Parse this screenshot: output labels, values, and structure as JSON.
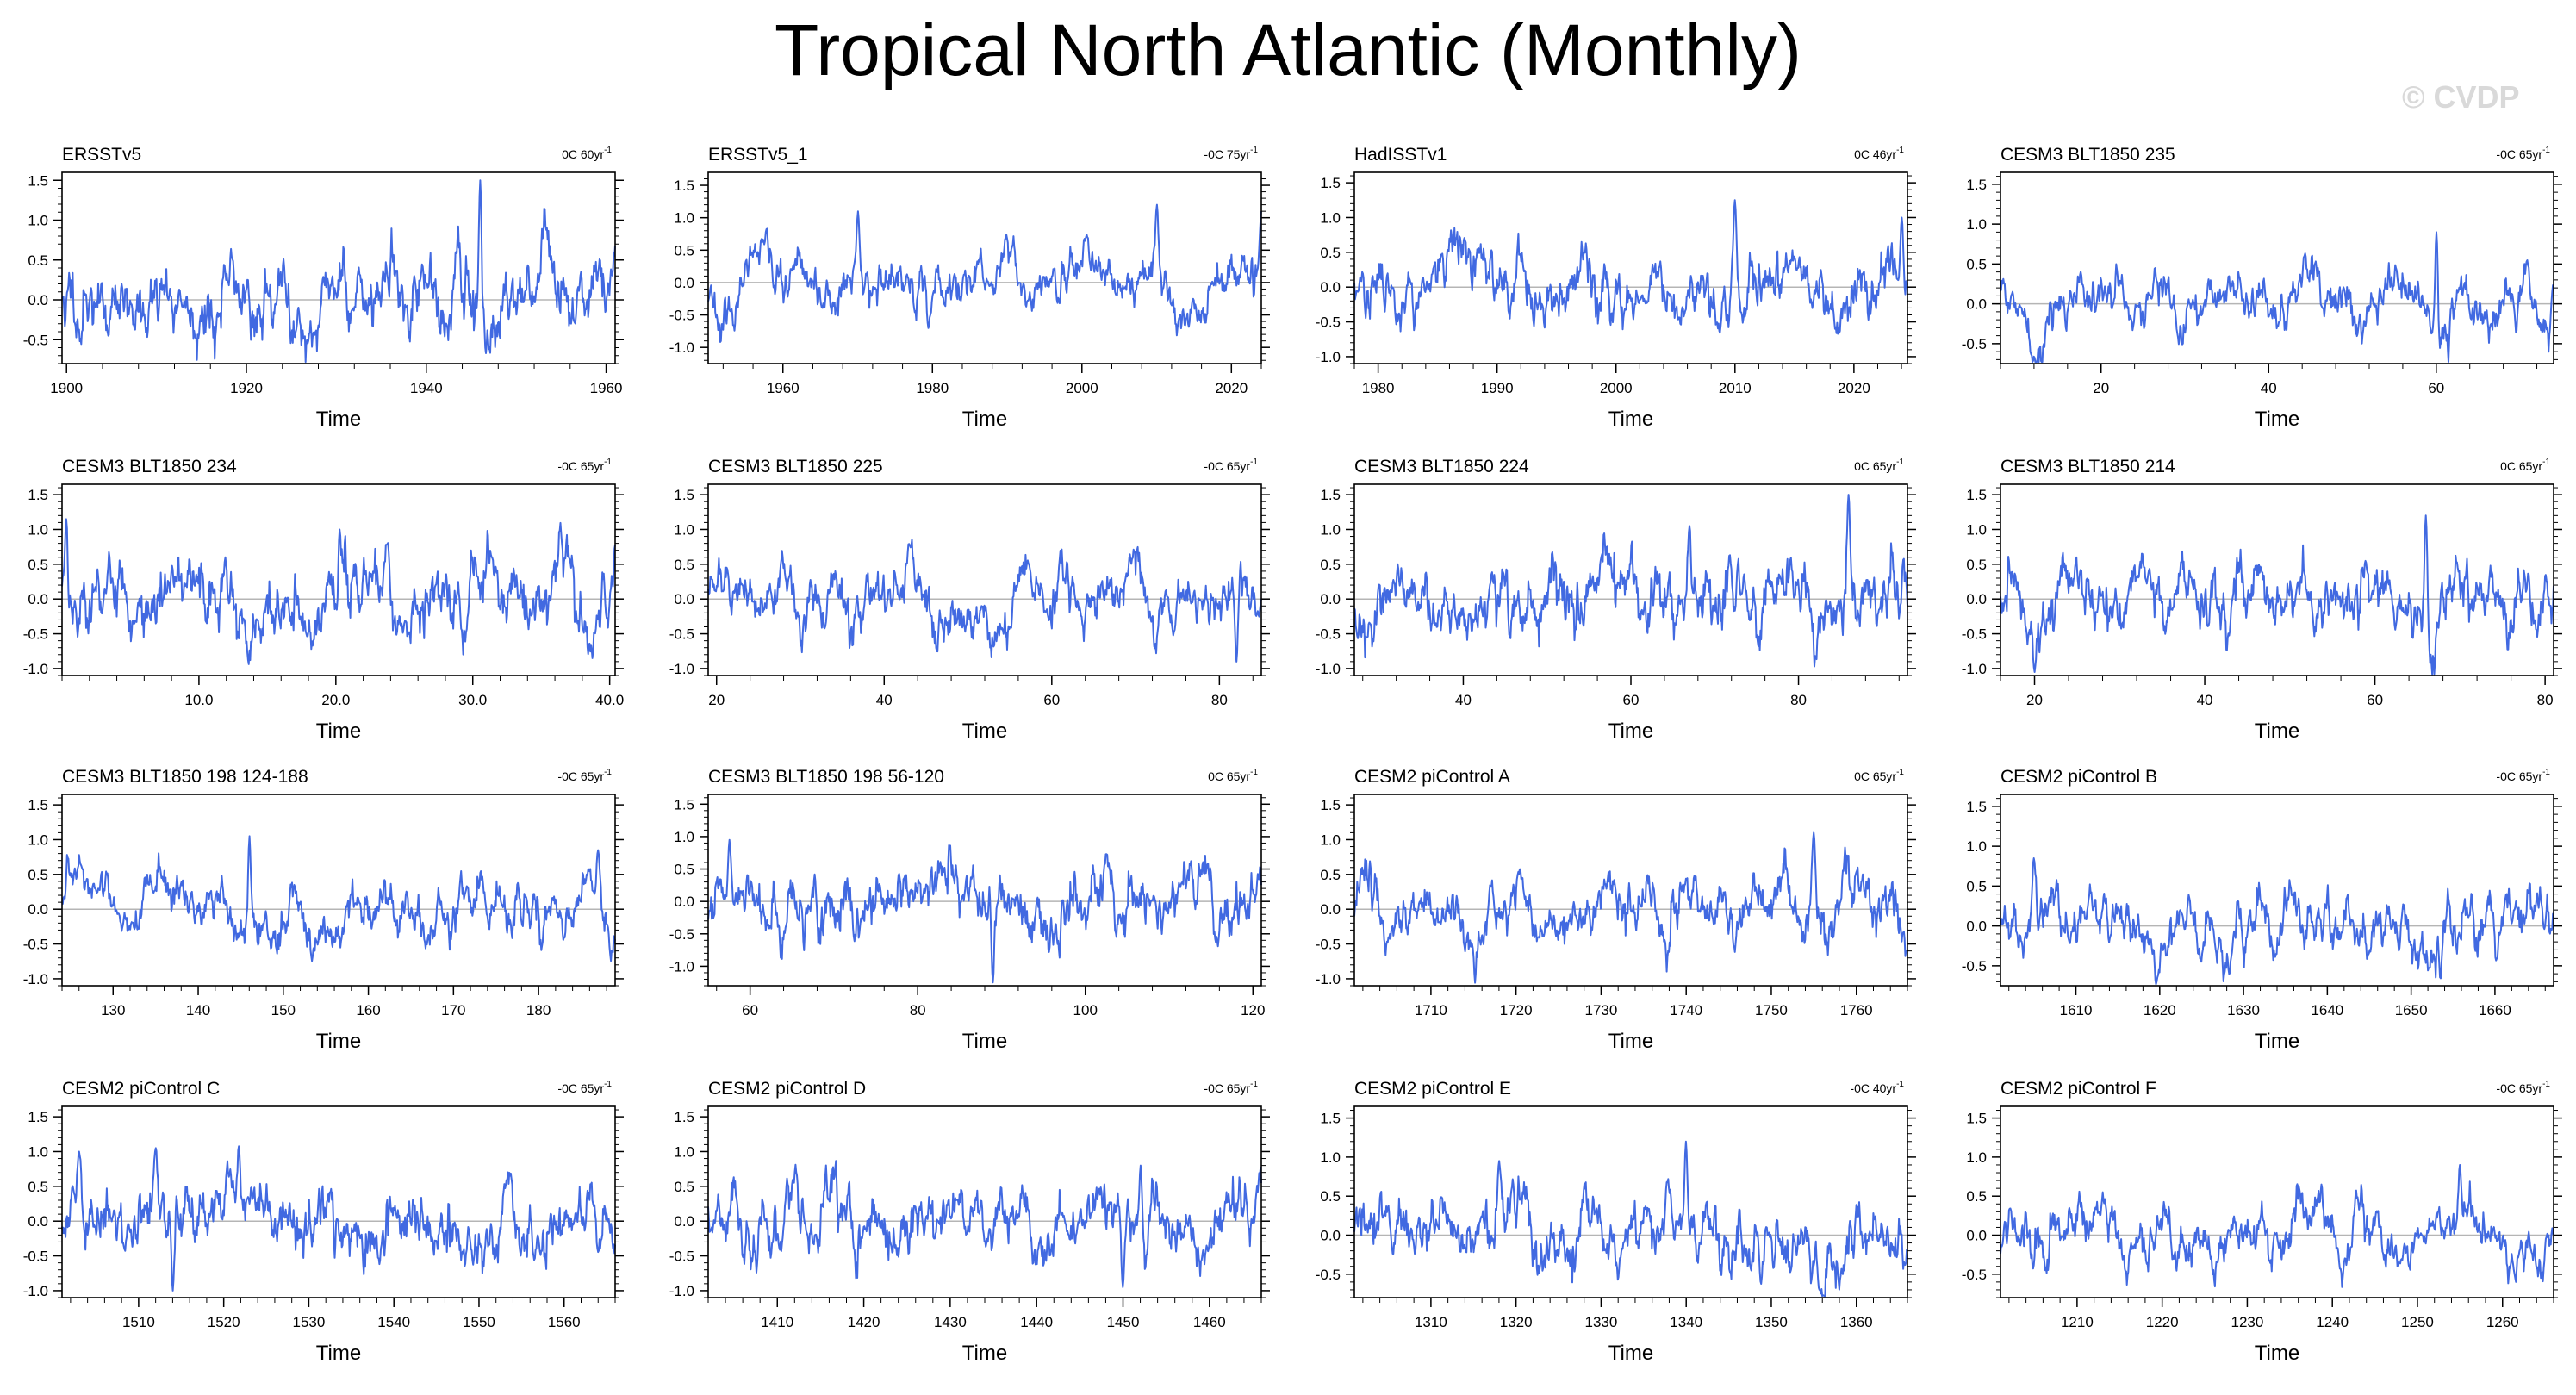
{
  "title": "Tropical North Atlantic (Monthly)",
  "watermark": "© CVDP",
  "colors": {
    "line": "#4169E1",
    "zero_line": "#b5b5b5",
    "axis": "#000000"
  },
  "chart_data": [
    {
      "type": "line",
      "title": "ERSSTv5",
      "trend": "0C 60yr",
      "trend_exp": "-1",
      "xlabel": "Time",
      "xlim": [
        1899.5,
        1961.0
      ],
      "xticks": [
        1900,
        1920,
        1940,
        1960
      ],
      "xtick_labels": [
        "1900",
        "1920",
        "1940",
        "1960"
      ],
      "ylim": [
        -0.8,
        1.6
      ],
      "yticks": [
        -0.5,
        0.0,
        0.5,
        1.0,
        1.5
      ],
      "ytick_labels": [
        "-0.5",
        "0.0",
        "0.5",
        "1.0",
        "1.5"
      ],
      "seed": 11,
      "mean": 0.0,
      "sd": 0.3,
      "highlights": [
        [
          1946,
          1.5
        ]
      ]
    },
    {
      "type": "line",
      "title": "ERSSTv5_1",
      "trend": "-0C 75yr",
      "trend_exp": "-1",
      "xlabel": "Time",
      "xlim": [
        1950,
        2024
      ],
      "xticks": [
        1960,
        1980,
        2000,
        2020
      ],
      "xtick_labels": [
        "1960",
        "1980",
        "2000",
        "2020"
      ],
      "ylim": [
        -1.25,
        1.7
      ],
      "yticks": [
        -1.0,
        -0.5,
        0.0,
        0.5,
        1.0,
        1.5
      ],
      "ytick_labels": [
        "-1.0",
        "-0.5",
        "0.0",
        "0.5",
        "1.0",
        "1.5"
      ],
      "seed": 23,
      "mean": 0.0,
      "sd": 0.3,
      "highlights": [
        [
          1970,
          1.1
        ],
        [
          2010,
          1.2
        ],
        [
          2024,
          1.1
        ]
      ]
    },
    {
      "type": "line",
      "title": "HadISSTv1",
      "trend": "0C 46yr",
      "trend_exp": "-1",
      "xlabel": "Time",
      "xlim": [
        1978.0,
        2024.5
      ],
      "xticks": [
        1980,
        1990,
        2000,
        2010,
        2020
      ],
      "xtick_labels": [
        "1980",
        "1990",
        "2000",
        "2010",
        "2020"
      ],
      "ylim": [
        -1.1,
        1.65
      ],
      "yticks": [
        -1.0,
        -0.5,
        0.0,
        0.5,
        1.0,
        1.5
      ],
      "ytick_labels": [
        "-1.0",
        "-0.5",
        "0.0",
        "0.5",
        "1.0",
        "1.5"
      ],
      "seed": 37,
      "mean": 0.0,
      "sd": 0.3,
      "highlights": [
        [
          2010,
          1.25
        ],
        [
          2024,
          1.0
        ]
      ]
    },
    {
      "type": "line",
      "title": "CESM3 BLT1850 235",
      "trend": "-0C 65yr",
      "trend_exp": "-1",
      "xlabel": "Time",
      "xlim": [
        8,
        74
      ],
      "xticks": [
        20,
        40,
        60
      ],
      "xtick_labels": [
        "20",
        "40",
        "60"
      ],
      "ylim": [
        -0.75,
        1.65
      ],
      "yticks": [
        -0.5,
        0.0,
        0.5,
        1.0,
        1.5
      ],
      "ytick_labels": [
        "-0.5",
        "0.0",
        "0.5",
        "1.0",
        "1.5"
      ],
      "seed": 41,
      "mean": 0.0,
      "sd": 0.25,
      "highlights": [
        [
          60,
          0.9
        ]
      ]
    },
    {
      "type": "line",
      "title": "CESM3 BLT1850 234",
      "trend": "-0C 65yr",
      "trend_exp": "-1",
      "xlabel": "Time",
      "xlim": [
        0.0,
        40.4
      ],
      "xticks": [
        10,
        20,
        30,
        40
      ],
      "xtick_labels": [
        "10.0",
        "20.0",
        "30.0",
        "40.0"
      ],
      "ylim": [
        -1.1,
        1.65
      ],
      "yticks": [
        -1.0,
        -0.5,
        0.0,
        0.5,
        1.0,
        1.5
      ],
      "ytick_labels": [
        "-1.0",
        "-0.5",
        "0.0",
        "0.5",
        "1.0",
        "1.5"
      ],
      "seed": 53,
      "mean": 0.0,
      "sd": 0.35,
      "highlights": [
        [
          0.3,
          1.15
        ],
        [
          20.3,
          1.0
        ]
      ]
    },
    {
      "type": "line",
      "title": "CESM3 BLT1850 225",
      "trend": "-0C 65yr",
      "trend_exp": "-1",
      "xlabel": "Time",
      "xlim": [
        19,
        85
      ],
      "xticks": [
        20,
        40,
        60,
        80
      ],
      "xtick_labels": [
        "20",
        "40",
        "60",
        "80"
      ],
      "ylim": [
        -1.1,
        1.65
      ],
      "yticks": [
        -1.0,
        -0.5,
        0.0,
        0.5,
        1.0,
        1.5
      ],
      "ytick_labels": [
        "-1.0",
        "-0.5",
        "0.0",
        "0.5",
        "1.0",
        "1.5"
      ],
      "seed": 61,
      "mean": 0.0,
      "sd": 0.3,
      "highlights": [
        [
          82,
          -0.9
        ]
      ]
    },
    {
      "type": "line",
      "title": "CESM3 BLT1850 224",
      "trend": "0C 65yr",
      "trend_exp": "-1",
      "xlabel": "Time",
      "xlim": [
        27,
        93
      ],
      "xticks": [
        40,
        60,
        80
      ],
      "xtick_labels": [
        "40",
        "60",
        "80"
      ],
      "ylim": [
        -1.1,
        1.65
      ],
      "yticks": [
        -1.0,
        -0.5,
        0.0,
        0.5,
        1.0,
        1.5
      ],
      "ytick_labels": [
        "-1.0",
        "-0.5",
        "0.0",
        "0.5",
        "1.0",
        "1.5"
      ],
      "seed": 71,
      "mean": 0.0,
      "sd": 0.3,
      "highlights": [
        [
          67,
          1.05
        ],
        [
          86,
          1.5
        ]
      ]
    },
    {
      "type": "line",
      "title": "CESM3 BLT1850 214",
      "trend": "0C 65yr",
      "trend_exp": "-1",
      "xlabel": "Time",
      "xlim": [
        16,
        81
      ],
      "xticks": [
        20,
        40,
        60,
        80
      ],
      "xtick_labels": [
        "20",
        "40",
        "60",
        "80"
      ],
      "ylim": [
        -1.1,
        1.65
      ],
      "yticks": [
        -1.0,
        -0.5,
        0.0,
        0.5,
        1.0,
        1.5
      ],
      "ytick_labels": [
        "-1.0",
        "-0.5",
        "0.0",
        "0.5",
        "1.0",
        "1.5"
      ],
      "seed": 83,
      "mean": 0.0,
      "sd": 0.3,
      "highlights": [
        [
          20,
          -1.05
        ],
        [
          66,
          1.2
        ]
      ]
    },
    {
      "type": "line",
      "title": "CESM3 BLT1850 198 124-188",
      "trend": "-0C 65yr",
      "trend_exp": "-1",
      "xlabel": "Time",
      "xlim": [
        124,
        189
      ],
      "xticks": [
        130,
        140,
        150,
        160,
        170,
        180
      ],
      "xtick_labels": [
        "130",
        "140",
        "150",
        "160",
        "170",
        "180"
      ],
      "ylim": [
        -1.1,
        1.65
      ],
      "yticks": [
        -1.0,
        -0.5,
        0.0,
        0.5,
        1.0,
        1.5
      ],
      "ytick_labels": [
        "-1.0",
        "-0.5",
        "0.0",
        "0.5",
        "1.0",
        "1.5"
      ],
      "seed": 97,
      "mean": 0.0,
      "sd": 0.3,
      "highlights": [
        [
          146,
          1.05
        ],
        [
          187,
          0.85
        ]
      ]
    },
    {
      "type": "line",
      "title": "CESM3 BLT1850 198 56-120",
      "trend": "0C 65yr",
      "trend_exp": "-1",
      "xlabel": "Time",
      "xlim": [
        55,
        121
      ],
      "xticks": [
        60,
        80,
        100,
        120
      ],
      "xtick_labels": [
        "60",
        "80",
        "100",
        "120"
      ],
      "ylim": [
        -1.3,
        1.65
      ],
      "yticks": [
        -1.0,
        -0.5,
        0.0,
        0.5,
        1.0,
        1.5
      ],
      "ytick_labels": [
        "-1.0",
        "-0.5",
        "0.0",
        "0.5",
        "1.0",
        "1.5"
      ],
      "seed": 101,
      "mean": 0.0,
      "sd": 0.3,
      "highlights": [
        [
          57.5,
          0.95
        ],
        [
          89,
          -1.25
        ]
      ]
    },
    {
      "type": "line",
      "title": "CESM2 piControl A",
      "trend": "0C 65yr",
      "trend_exp": "-1",
      "xlabel": "Time",
      "xlim": [
        1701,
        1766
      ],
      "xticks": [
        1710,
        1720,
        1730,
        1740,
        1750,
        1760
      ],
      "xtick_labels": [
        "1710",
        "1720",
        "1730",
        "1740",
        "1750",
        "1760"
      ],
      "ylim": [
        -1.1,
        1.65
      ],
      "yticks": [
        -1.0,
        -0.5,
        0.0,
        0.5,
        1.0,
        1.5
      ],
      "ytick_labels": [
        "-1.0",
        "-0.5",
        "0.0",
        "0.5",
        "1.0",
        "1.5"
      ],
      "seed": 113,
      "mean": 0.0,
      "sd": 0.3,
      "highlights": [
        [
          1755,
          1.1
        ]
      ]
    },
    {
      "type": "line",
      "title": "CESM2 piControl B",
      "trend": "-0C 65yr",
      "trend_exp": "-1",
      "xlabel": "Time",
      "xlim": [
        1601,
        1667
      ],
      "xticks": [
        1610,
        1620,
        1630,
        1640,
        1650,
        1660
      ],
      "xtick_labels": [
        "1610",
        "1620",
        "1630",
        "1640",
        "1650",
        "1660"
      ],
      "ylim": [
        -0.75,
        1.65
      ],
      "yticks": [
        -0.5,
        0.0,
        0.5,
        1.0,
        1.5
      ],
      "ytick_labels": [
        "-0.5",
        "0.0",
        "0.5",
        "1.0",
        "1.5"
      ],
      "seed": 127,
      "mean": 0.0,
      "sd": 0.25,
      "highlights": [
        [
          1605,
          0.85
        ]
      ]
    },
    {
      "type": "line",
      "title": "CESM2 piControl C",
      "trend": "-0C 65yr",
      "trend_exp": "-1",
      "xlabel": "Time",
      "xlim": [
        1501,
        1566
      ],
      "xticks": [
        1510,
        1520,
        1530,
        1540,
        1550,
        1560
      ],
      "xtick_labels": [
        "1510",
        "1520",
        "1530",
        "1540",
        "1550",
        "1560"
      ],
      "ylim": [
        -1.1,
        1.65
      ],
      "yticks": [
        -1.0,
        -0.5,
        0.0,
        0.5,
        1.0,
        1.5
      ],
      "ytick_labels": [
        "-1.0",
        "-0.5",
        "0.0",
        "0.5",
        "1.0",
        "1.5"
      ],
      "seed": 131,
      "mean": 0.0,
      "sd": 0.3,
      "highlights": [
        [
          1503,
          1.0
        ],
        [
          1512,
          1.05
        ],
        [
          1514,
          -1.0
        ]
      ]
    },
    {
      "type": "line",
      "title": "CESM2 piControl D",
      "trend": "-0C 65yr",
      "trend_exp": "-1",
      "xlabel": "Time",
      "xlim": [
        1402,
        1466
      ],
      "xticks": [
        1410,
        1420,
        1430,
        1440,
        1450,
        1460
      ],
      "xtick_labels": [
        "1410",
        "1420",
        "1430",
        "1440",
        "1450",
        "1460"
      ],
      "ylim": [
        -1.1,
        1.65
      ],
      "yticks": [
        -1.0,
        -0.5,
        0.0,
        0.5,
        1.0,
        1.5
      ],
      "ytick_labels": [
        "-1.0",
        "-0.5",
        "0.0",
        "0.5",
        "1.0",
        "1.5"
      ],
      "seed": 139,
      "mean": 0.0,
      "sd": 0.3,
      "highlights": [
        [
          1450,
          -0.95
        ],
        [
          1452,
          0.8
        ]
      ]
    },
    {
      "type": "line",
      "title": "CESM2 piControl E",
      "trend": "-0C 40yr",
      "trend_exp": "-1",
      "xlabel": "Time",
      "xlim": [
        1301,
        1366
      ],
      "xticks": [
        1310,
        1320,
        1330,
        1340,
        1350,
        1360
      ],
      "xtick_labels": [
        "1310",
        "1320",
        "1330",
        "1340",
        "1350",
        "1360"
      ],
      "ylim": [
        -0.8,
        1.65
      ],
      "yticks": [
        -0.5,
        0.0,
        0.5,
        1.0,
        1.5
      ],
      "ytick_labels": [
        "-0.5",
        "0.0",
        "0.5",
        "1.0",
        "1.5"
      ],
      "seed": 149,
      "mean": 0.0,
      "sd": 0.28,
      "highlights": [
        [
          1340,
          1.2
        ],
        [
          1318,
          0.95
        ]
      ]
    },
    {
      "type": "line",
      "title": "CESM2 piControl F",
      "trend": "-0C 65yr",
      "trend_exp": "-1",
      "xlabel": "Time",
      "xlim": [
        1201,
        1266
      ],
      "xticks": [
        1210,
        1220,
        1230,
        1240,
        1250,
        1260
      ],
      "xtick_labels": [
        "1210",
        "1220",
        "1230",
        "1240",
        "1250",
        "1260"
      ],
      "ylim": [
        -0.8,
        1.65
      ],
      "yticks": [
        -0.5,
        0.0,
        0.5,
        1.0,
        1.5
      ],
      "ytick_labels": [
        "-0.5",
        "0.0",
        "0.5",
        "1.0",
        "1.5"
      ],
      "seed": 157,
      "mean": 0.0,
      "sd": 0.25,
      "highlights": [
        [
          1255,
          0.9
        ]
      ]
    }
  ]
}
